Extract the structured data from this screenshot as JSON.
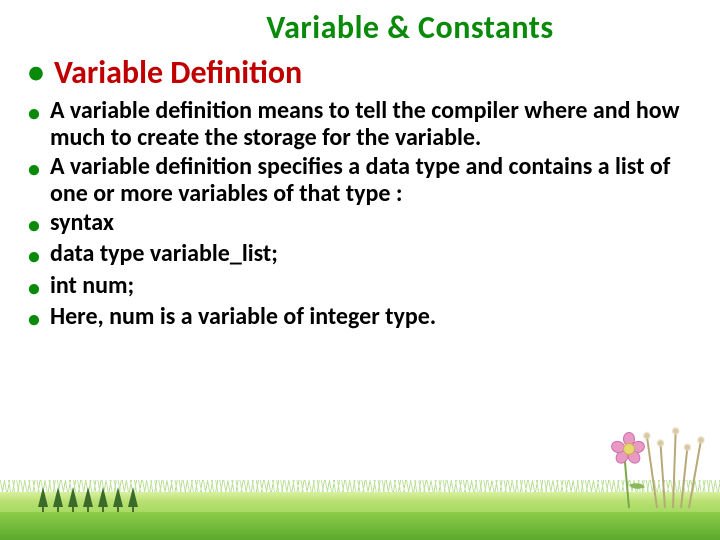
{
  "title": {
    "text": "Variable & Constants",
    "color": "#0a8a0a",
    "fontsize": 32
  },
  "subtitle": {
    "text": "Variable Definition",
    "color": "#c00000",
    "bullet_color": "#0a8a0a",
    "fontsize": 32
  },
  "bullets": [
    "A variable definition means to tell the compiler where and how much to create the storage for the variable.",
    "A variable definition specifies a data type and contains a list of one or more variables of that type :",
    "syntax",
    "data type variable_list;",
    "int num;",
    "Here, num is a variable of integer type."
  ],
  "body": {
    "color": "#000000",
    "bullet_color": "#0a8a0a",
    "fontsize": 24
  },
  "decor": {
    "grass_light": "#b8e070",
    "grass_dark": "#6fb838",
    "tree_color": "#3a6b2a",
    "flower_petal": "#e89ac4",
    "flower_center": "#e8d870",
    "reed_color": "#b8a878"
  }
}
